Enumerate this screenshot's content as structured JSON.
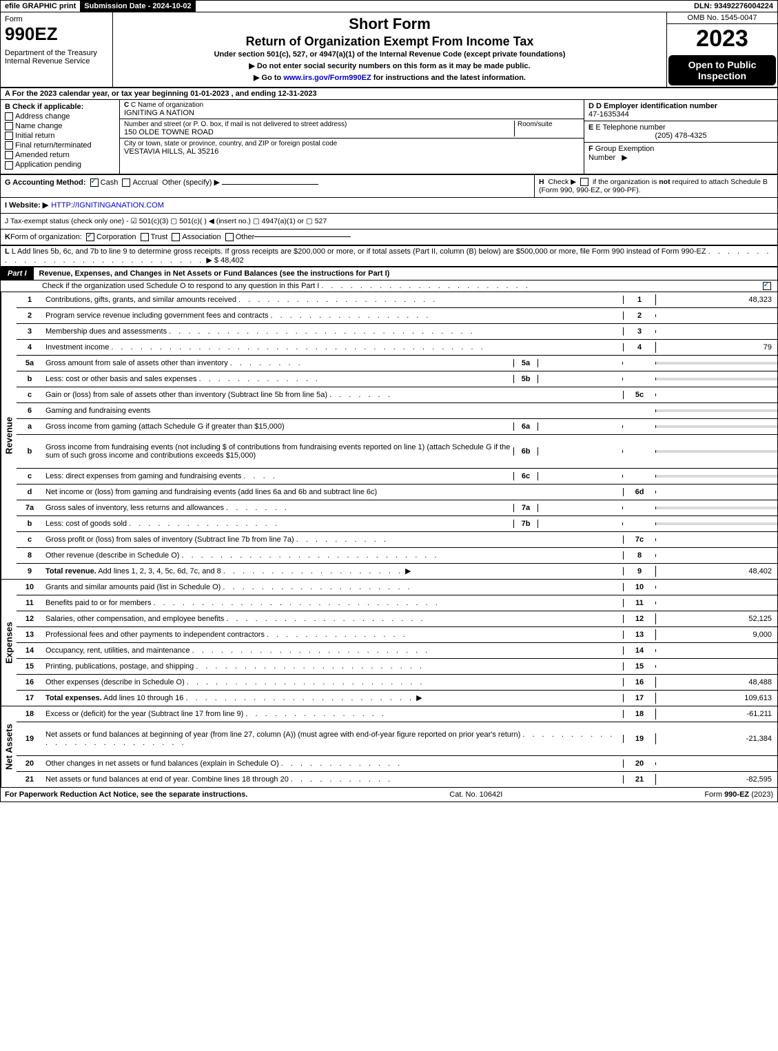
{
  "topbar": {
    "efile": "efile GRAPHIC print",
    "subdate_label": "Submission Date - 2024-10-02",
    "dln": "DLN: 93492276004224"
  },
  "header": {
    "form_label": "Form",
    "form_no": "990EZ",
    "dept": "Department of the Treasury\nInternal Revenue Service",
    "t1": "Short Form",
    "t2": "Return of Organization Exempt From Income Tax",
    "t3": "Under section 501(c), 527, or 4947(a)(1) of the Internal Revenue Code (except private foundations)",
    "t4": "▶ Do not enter social security numbers on this form as it may be made public.",
    "t5": "▶ Go to www.irs.gov/Form990EZ for instructions and the latest information.",
    "t5_url": "www.irs.gov/Form990EZ",
    "omb": "OMB No. 1545-0047",
    "year": "2023",
    "open": "Open to Public Inspection"
  },
  "secA": "A  For the 2023 calendar year, or tax year beginning 01-01-2023 , and ending 12-31-2023",
  "entity": {
    "B_label": "B  Check if applicable:",
    "checks": [
      "Address change",
      "Name change",
      "Initial return",
      "Final return/terminated",
      "Amended return",
      "Application pending"
    ],
    "C_label": "C Name of organization",
    "C_value": "IGNITING A NATION",
    "addr_label": "Number and street (or P. O. box, if mail is not delivered to street address)",
    "addr_value": "150 OLDE TOWNE ROAD",
    "room_label": "Room/suite",
    "city_label": "City or town, state or province, country, and ZIP or foreign postal code",
    "city_value": "VESTAVIA HILLS, AL  35216",
    "D_label": "D Employer identification number",
    "D_value": "47-1635344",
    "E_label": "E Telephone number",
    "E_value": "(205) 478-4325",
    "F_label": "F Group Exemption Number ▶"
  },
  "G": {
    "label": "G Accounting Method:",
    "cash": "Cash",
    "accrual": "Accrual",
    "other": "Other (specify) ▶"
  },
  "H": "H  Check ▶  ▢  if the organization is not required to attach Schedule B (Form 990, 990-EZ, or 990-PF).",
  "I": {
    "label": "I Website: ▶",
    "url": "HTTP://IGNITINGANATION.COM"
  },
  "J": "J Tax-exempt status (check only one) -  ☑ 501(c)(3)  ▢ 501(c)(  ) ◀ (insert no.)  ▢ 4947(a)(1) or  ▢ 527",
  "K": "K Form of organization:  ☑ Corporation  ▢ Trust  ▢ Association  ▢ Other",
  "L": {
    "text": "L Add lines 5b, 6c, and 7b to line 9 to determine gross receipts. If gross receipts are $200,000 or more, or if total assets (Part II, column (B) below) are $500,000 or more, file Form 990 instead of Form 990-EZ",
    "dots": ". . . . . . . . . . . . . . . . . . . . . . . . . . . .",
    "arrow": "▶",
    "value": "$ 48,402"
  },
  "part1": {
    "tag": "Part I",
    "title": "Revenue, Expenses, and Changes in Net Assets or Fund Balances (see the instructions for Part I)",
    "sub": "Check if the organization used Schedule O to respond to any question in this Part I",
    "sub_dots": ". . . . . . . . . . . . . . . . . . . . . ."
  },
  "sidelabels": {
    "rev": "Revenue",
    "exp": "Expenses",
    "net": "Net Assets"
  },
  "revenue": [
    {
      "n": "1",
      "d": "Contributions, gifts, grants, and similar amounts received",
      "dots": ". . . . . . . . . . . . . . . . . . . . .",
      "r": "1",
      "v": "48,323"
    },
    {
      "n": "2",
      "d": "Program service revenue including government fees and contracts",
      "dots": ". . . . . . . . . . . . . . . . .",
      "r": "2",
      "v": ""
    },
    {
      "n": "3",
      "d": "Membership dues and assessments",
      "dots": ". . . . . . . . . . . . . . . . . . . . . . . . . . . . . . . .",
      "r": "3",
      "v": ""
    },
    {
      "n": "4",
      "d": "Investment income",
      "dots": ". . . . . . . . . . . . . . . . . . . . . . . . . . . . . . . . . . . . . . .",
      "r": "4",
      "v": "79"
    },
    {
      "n": "5a",
      "d": "Gross amount from sale of assets other than inventory",
      "dots": ". . . . . . . .",
      "sub": "5a",
      "sv": "",
      "shade": true
    },
    {
      "n": "b",
      "d": "Less: cost or other basis and sales expenses",
      "dots": ". . . . . . . . . . . . .",
      "sub": "5b",
      "sv": "",
      "shade": true
    },
    {
      "n": "c",
      "d": "Gain or (loss) from sale of assets other than inventory (Subtract line 5b from line 5a)",
      "dots": ". . . . . . .",
      "r": "5c",
      "v": ""
    },
    {
      "n": "6",
      "d": "Gaming and fundraising events",
      "shade": true,
      "nobox": true
    },
    {
      "n": "a",
      "d": "Gross income from gaming (attach Schedule G if greater than $15,000)",
      "sub": "6a",
      "sv": "",
      "shade": true
    },
    {
      "n": "b",
      "d": "Gross income from fundraising events (not including $                       of contributions from fundraising events reported on line 1) (attach Schedule G if the sum of such gross income and contributions exceeds $15,000)",
      "sub": "6b",
      "sv": "",
      "tall": true,
      "shade": true
    },
    {
      "n": "c",
      "d": "Less: direct expenses from gaming and fundraising events",
      "dots": ". . . .",
      "sub": "6c",
      "sv": "",
      "shade": true
    },
    {
      "n": "d",
      "d": "Net income or (loss) from gaming and fundraising events (add lines 6a and 6b and subtract line 6c)",
      "r": "6d",
      "v": ""
    },
    {
      "n": "7a",
      "d": "Gross sales of inventory, less returns and allowances",
      "dots": ". . . . . . .",
      "sub": "7a",
      "sv": "",
      "shade": true
    },
    {
      "n": "b",
      "d": "Less: cost of goods sold",
      "dots": ". . . . . . . . . . . . . . . .",
      "sub": "7b",
      "sv": "",
      "shade": true
    },
    {
      "n": "c",
      "d": "Gross profit or (loss) from sales of inventory (Subtract line 7b from line 7a)",
      "dots": ". . . . . . . . . .",
      "r": "7c",
      "v": ""
    },
    {
      "n": "8",
      "d": "Other revenue (describe in Schedule O)",
      "dots": ". . . . . . . . . . . . . . . . . . . . . . . . . . .",
      "r": "8",
      "v": ""
    },
    {
      "n": "9",
      "d": "Total revenue. Add lines 1, 2, 3, 4, 5c, 6d, 7c, and 8",
      "dots": ". . . . . . . . . . . . . . . . . . .",
      "arrow": true,
      "r": "9",
      "v": "48,402",
      "bold": true
    }
  ],
  "expenses": [
    {
      "n": "10",
      "d": "Grants and similar amounts paid (list in Schedule O)",
      "dots": ". . . . . . . . . . . . . . . . . . . .",
      "r": "10",
      "v": ""
    },
    {
      "n": "11",
      "d": "Benefits paid to or for members",
      "dots": ". . . . . . . . . . . . . . . . . . . . . . . . . . . . . .",
      "r": "11",
      "v": ""
    },
    {
      "n": "12",
      "d": "Salaries, other compensation, and employee benefits",
      "dots": ". . . . . . . . . . . . . . . . . . . . .",
      "r": "12",
      "v": "52,125"
    },
    {
      "n": "13",
      "d": "Professional fees and other payments to independent contractors",
      "dots": ". . . . . . . . . . . . . . .",
      "r": "13",
      "v": "9,000"
    },
    {
      "n": "14",
      "d": "Occupancy, rent, utilities, and maintenance",
      "dots": ". . . . . . . . . . . . . . . . . . . . . . . . .",
      "r": "14",
      "v": ""
    },
    {
      "n": "15",
      "d": "Printing, publications, postage, and shipping",
      "dots": ". . . . . . . . . . . . . . . . . . . . . . . .",
      "r": "15",
      "v": ""
    },
    {
      "n": "16",
      "d": "Other expenses (describe in Schedule O)",
      "dots": ". . . . . . . . . . . . . . . . . . . . . . . . .",
      "r": "16",
      "v": "48,488"
    },
    {
      "n": "17",
      "d": "Total expenses. Add lines 10 through 16",
      "dots": ". . . . . . . . . . . . . . . . . . . . . . . .",
      "arrow": true,
      "r": "17",
      "v": "109,613",
      "bold": true
    }
  ],
  "netassets": [
    {
      "n": "18",
      "d": "Excess or (deficit) for the year (Subtract line 17 from line 9)",
      "dots": ". . . . . . . . . . . . . . .",
      "r": "18",
      "v": "-61,211"
    },
    {
      "n": "19",
      "d": "Net assets or fund balances at beginning of year (from line 27, column (A)) (must agree with end-of-year figure reported on prior year's return)",
      "dots": ". . . . . . . . . . . . . . . . . . . . . . . . .",
      "r": "19",
      "v": "-21,384",
      "tall": true
    },
    {
      "n": "20",
      "d": "Other changes in net assets or fund balances (explain in Schedule O)",
      "dots": ". . . . . . . . . . . . .",
      "r": "20",
      "v": ""
    },
    {
      "n": "21",
      "d": "Net assets or fund balances at end of year. Combine lines 18 through 20",
      "dots": ". . . . . . . . . . .",
      "r": "21",
      "v": "-82,595"
    }
  ],
  "footer": {
    "left": "For Paperwork Reduction Act Notice, see the separate instructions.",
    "mid": "Cat. No. 10642I",
    "right": "Form 990-EZ (2023)"
  }
}
